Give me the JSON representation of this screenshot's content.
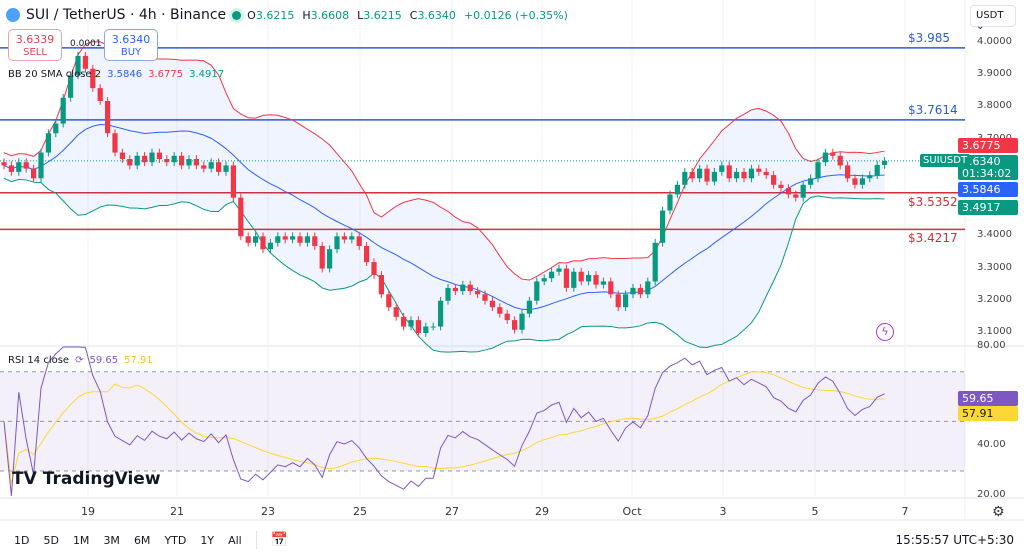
{
  "header": {
    "symbol": "SUI / TetherUS · 4h · Binance",
    "open_label": "O",
    "open": "3.6215",
    "high_label": "H",
    "high": "3.6608",
    "low_label": "L",
    "low": "3.6215",
    "close_label": "C",
    "close": "3.6340",
    "change": "+0.0126 (+0.35%)"
  },
  "trade": {
    "sell_price": "3.6339",
    "sell_label": "SELL",
    "spread": "0.0001",
    "buy_price": "3.6340",
    "buy_label": "BUY"
  },
  "bb": {
    "label": "BB 20 SMA close 2",
    "basis": "3.5846",
    "upper": "3.6775",
    "lower": "3.4917"
  },
  "rsi": {
    "label": "RSI 14 close",
    "value": "59.65",
    "ma": "57.91"
  },
  "currency": "USDT",
  "symbol_tag": "SUIUSDT",
  "last_price": "3.6340",
  "countdown": "01:34:02",
  "levels": [
    {
      "label": "$3.985",
      "value": 3.985,
      "color": "#2a5bd7"
    },
    {
      "label": "$3.7614",
      "value": 3.7614,
      "color": "#2a5bd7"
    },
    {
      "label": "$3.5352",
      "value": 3.5352,
      "color": "#d32f3a"
    },
    {
      "label": "$3.4217",
      "value": 3.4217,
      "color": "#d32f3a"
    }
  ],
  "price_ticks": [
    "4.0000",
    "3.9000",
    "3.8000",
    "3.7000",
    "3.4000",
    "3.3000",
    "3.2000",
    "3.1000"
  ],
  "rsi_ticks": [
    "80.00",
    "40.00",
    "20.00"
  ],
  "dates": [
    "19",
    "21",
    "23",
    "25",
    "27",
    "29",
    "Oct",
    "3",
    "5",
    "7"
  ],
  "ranges": [
    "1D",
    "5D",
    "1M",
    "3M",
    "6M",
    "YTD",
    "1Y",
    "All"
  ],
  "clock": "15:55:57 UTC+5:30",
  "logo": "TradingView",
  "colors": {
    "up": "#089981",
    "down": "#f23645",
    "bb_basis": "#2962ff",
    "bb_upper": "#f23645",
    "bb_lower": "#089981",
    "rsi": "#7e57c2",
    "rsi_ma": "#fdd835"
  },
  "chart_data": {
    "type": "candlestick",
    "interval": "4h",
    "ylim": [
      3.08,
      4.02
    ],
    "rsi_ylim": [
      15,
      82
    ],
    "rsi_bands": [
      70,
      50,
      30
    ],
    "closes": [
      3.62,
      3.6,
      3.63,
      3.61,
      3.58,
      3.66,
      3.72,
      3.75,
      3.83,
      3.9,
      3.96,
      3.92,
      3.86,
      3.82,
      3.72,
      3.66,
      3.64,
      3.62,
      3.65,
      3.63,
      3.66,
      3.64,
      3.63,
      3.65,
      3.62,
      3.64,
      3.62,
      3.61,
      3.63,
      3.6,
      3.62,
      3.52,
      3.4,
      3.38,
      3.4,
      3.36,
      3.38,
      3.4,
      3.39,
      3.4,
      3.38,
      3.4,
      3.37,
      3.3,
      3.36,
      3.4,
      3.39,
      3.4,
      3.37,
      3.32,
      3.28,
      3.22,
      3.18,
      3.15,
      3.12,
      3.14,
      3.1,
      3.12,
      3.12,
      3.2,
      3.24,
      3.23,
      3.25,
      3.23,
      3.22,
      3.2,
      3.18,
      3.16,
      3.14,
      3.11,
      3.16,
      3.2,
      3.26,
      3.27,
      3.29,
      3.3,
      3.24,
      3.29,
      3.26,
      3.28,
      3.25,
      3.26,
      3.22,
      3.18,
      3.22,
      3.24,
      3.22,
      3.26,
      3.38,
      3.48,
      3.53,
      3.56,
      3.6,
      3.58,
      3.61,
      3.57,
      3.6,
      3.62,
      3.58,
      3.6,
      3.58,
      3.61,
      3.6,
      3.59,
      3.56,
      3.55,
      3.53,
      3.52,
      3.56,
      3.58,
      3.63,
      3.66,
      3.65,
      3.62,
      3.58,
      3.56,
      3.58,
      3.59,
      3.6215,
      3.634
    ]
  }
}
